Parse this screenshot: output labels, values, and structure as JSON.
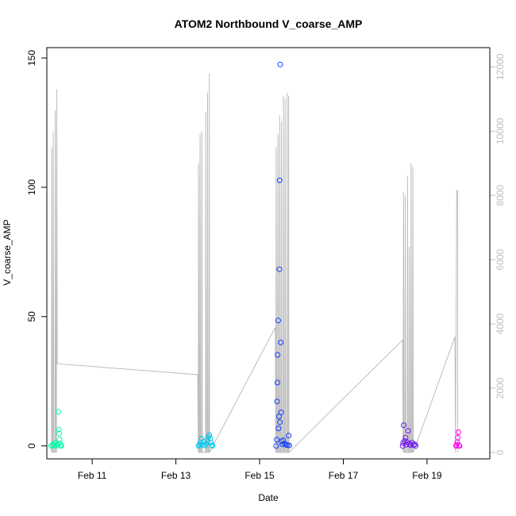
{
  "chart_data": {
    "type": "scatter",
    "title": "ATOM2 Northbound V_coarse_AMP",
    "xlabel": "Date",
    "ylabel": "V_coarse_AMP",
    "x_axis": {
      "min": "2011-02-09T22:00",
      "max": "2011-02-20T12:00",
      "ticks": [
        "Feb 11",
        "Feb 13",
        "Feb 15",
        "Feb 17",
        "Feb 19"
      ]
    },
    "y_left": {
      "min": -5,
      "max": 154,
      "ticks": [
        0,
        50,
        100,
        150
      ]
    },
    "y_right": {
      "min": -200,
      "max": 12600,
      "ticks": [
        0,
        2000,
        4000,
        6000,
        8000,
        10000,
        12000
      ],
      "color": "#bdbdbd"
    },
    "series": [
      {
        "color": "#00ffaa",
        "points": [
          [
            "2011-02-10T00:30",
            0
          ],
          [
            "2011-02-10T01:00",
            0.3
          ],
          [
            "2011-02-10T01:40",
            0.6
          ],
          [
            "2011-02-10T02:10",
            0.2
          ],
          [
            "2011-02-10T02:50",
            1.2
          ],
          [
            "2011-02-10T03:20",
            0.4
          ],
          [
            "2011-02-10T03:50",
            0.1
          ],
          [
            "2011-02-10T04:20",
            0.8
          ],
          [
            "2011-02-10T04:40",
            13.2
          ],
          [
            "2011-02-10T04:55",
            6.3
          ],
          [
            "2011-02-10T05:05",
            4.8
          ],
          [
            "2011-02-10T05:20",
            2.4
          ],
          [
            "2011-02-10T05:40",
            0.9
          ],
          [
            "2011-02-10T06:00",
            0.2
          ],
          [
            "2011-02-10T06:20",
            0
          ]
        ]
      },
      {
        "color": "#00c8ee",
        "points": [
          [
            "2011-02-13T13:00",
            0
          ],
          [
            "2011-02-13T13:30",
            0.4
          ],
          [
            "2011-02-13T14:00",
            1.1
          ],
          [
            "2011-02-13T14:40",
            2.8
          ],
          [
            "2011-02-13T15:20",
            0.5
          ],
          [
            "2011-02-13T16:00",
            1.6
          ],
          [
            "2011-02-13T16:40",
            0.2
          ],
          [
            "2011-02-13T17:20",
            0.9
          ],
          [
            "2011-02-13T18:00",
            2.1
          ],
          [
            "2011-02-13T18:40",
            3.5
          ],
          [
            "2011-02-13T19:10",
            4.2
          ],
          [
            "2011-02-13T19:40",
            2.9
          ],
          [
            "2011-02-13T20:10",
            1.3
          ],
          [
            "2011-02-13T20:40",
            0.3
          ],
          [
            "2011-02-13T21:00",
            0
          ]
        ]
      },
      {
        "color": "#1040ff",
        "points": [
          [
            "2011-02-15T09:30",
            0
          ],
          [
            "2011-02-15T09:50",
            2.4
          ],
          [
            "2011-02-15T10:00",
            17.2
          ],
          [
            "2011-02-15T10:10",
            24.5
          ],
          [
            "2011-02-15T10:20",
            35.2
          ],
          [
            "2011-02-15T10:40",
            48.5
          ],
          [
            "2011-02-15T10:50",
            6.8
          ],
          [
            "2011-02-15T11:10",
            11.4
          ],
          [
            "2011-02-15T11:20",
            68.3
          ],
          [
            "2011-02-15T11:30",
            102.7
          ],
          [
            "2011-02-15T11:40",
            9.2
          ],
          [
            "2011-02-15T11:50",
            147.5
          ],
          [
            "2011-02-15T12:10",
            40.0
          ],
          [
            "2011-02-15T12:20",
            13.0
          ],
          [
            "2011-02-15T12:40",
            1.8
          ],
          [
            "2011-02-15T13:10",
            0.6
          ],
          [
            "2011-02-15T13:40",
            2.2
          ],
          [
            "2011-02-15T14:20",
            0.9
          ],
          [
            "2011-02-15T15:10",
            0.4
          ],
          [
            "2011-02-15T16:00",
            0.3
          ],
          [
            "2011-02-15T16:40",
            4.0
          ],
          [
            "2011-02-15T17:00",
            0.2
          ]
        ]
      },
      {
        "color": "#6a10ee",
        "points": [
          [
            "2011-02-18T10:00",
            0
          ],
          [
            "2011-02-18T10:20",
            1.1
          ],
          [
            "2011-02-18T10:40",
            8.0
          ],
          [
            "2011-02-18T11:10",
            1.9
          ],
          [
            "2011-02-18T11:40",
            3.2
          ],
          [
            "2011-02-18T12:10",
            0.5
          ],
          [
            "2011-02-18T12:40",
            1.4
          ],
          [
            "2011-02-18T13:10",
            5.8
          ],
          [
            "2011-02-18T13:50",
            0.7
          ],
          [
            "2011-02-18T14:40",
            0.3
          ],
          [
            "2011-02-18T15:30",
            1.2
          ],
          [
            "2011-02-18T16:20",
            0.4
          ],
          [
            "2011-02-18T17:00",
            0.6
          ],
          [
            "2011-02-18T17:30",
            0
          ]
        ]
      },
      {
        "color": "#ff00ee",
        "points": [
          [
            "2011-02-19T16:40",
            0
          ],
          [
            "2011-02-19T17:00",
            0.4
          ],
          [
            "2011-02-19T17:20",
            1.4
          ],
          [
            "2011-02-19T17:40",
            3.2
          ],
          [
            "2011-02-19T18:00",
            5.3
          ],
          [
            "2011-02-19T18:20",
            0.2
          ],
          [
            "2011-02-19T18:40",
            0
          ]
        ]
      }
    ],
    "line_series": {
      "color": "#bdbdbd",
      "axis": "right",
      "points": [
        [
          "2011-02-10T00:40",
          0
        ],
        [
          "2011-02-10T00:50",
          9500
        ],
        [
          "2011-02-10T01:10",
          0
        ],
        [
          "2011-02-10T01:30",
          0
        ],
        [
          "2011-02-10T01:40",
          10000
        ],
        [
          "2011-02-10T02:00",
          0
        ],
        [
          "2011-02-10T02:40",
          0
        ],
        [
          "2011-02-10T02:50",
          10650
        ],
        [
          "2011-02-10T03:10",
          0
        ],
        [
          "2011-02-10T03:30",
          0
        ],
        [
          "2011-02-10T03:40",
          11300
        ],
        [
          "2011-02-10T04:00",
          2760
        ],
        [
          "2011-02-13T12:30",
          2420
        ],
        [
          "2011-02-13T12:50",
          0
        ],
        [
          "2011-02-13T13:00",
          9000
        ],
        [
          "2011-02-13T13:20",
          0
        ],
        [
          "2011-02-13T13:40",
          0
        ],
        [
          "2011-02-13T13:50",
          9900
        ],
        [
          "2011-02-13T14:10",
          0
        ],
        [
          "2011-02-13T14:40",
          0
        ],
        [
          "2011-02-13T14:50",
          10000
        ],
        [
          "2011-02-13T15:10",
          0
        ],
        [
          "2011-02-13T17:00",
          0
        ],
        [
          "2011-02-13T17:10",
          10600
        ],
        [
          "2011-02-13T17:30",
          0
        ],
        [
          "2011-02-13T18:00",
          0
        ],
        [
          "2011-02-13T18:10",
          11200
        ],
        [
          "2011-02-13T18:30",
          0
        ],
        [
          "2011-02-13T19:00",
          0
        ],
        [
          "2011-02-13T19:10",
          11800
        ],
        [
          "2011-02-13T19:20",
          0
        ],
        [
          "2011-02-15T09:00",
          3900
        ],
        [
          "2011-02-15T09:20",
          0
        ],
        [
          "2011-02-15T09:30",
          9500
        ],
        [
          "2011-02-15T09:50",
          0
        ],
        [
          "2011-02-15T10:20",
          0
        ],
        [
          "2011-02-15T10:30",
          9900
        ],
        [
          "2011-02-15T10:50",
          0
        ],
        [
          "2011-02-15T11:20",
          0
        ],
        [
          "2011-02-15T11:30",
          10500
        ],
        [
          "2011-02-15T11:50",
          0
        ],
        [
          "2011-02-15T12:20",
          0
        ],
        [
          "2011-02-15T12:30",
          10300
        ],
        [
          "2011-02-15T12:50",
          0
        ],
        [
          "2011-02-15T13:30",
          0
        ],
        [
          "2011-02-15T13:40",
          11100
        ],
        [
          "2011-02-15T14:00",
          0
        ],
        [
          "2011-02-15T14:30",
          0
        ],
        [
          "2011-02-15T14:40",
          11000
        ],
        [
          "2011-02-15T15:00",
          0
        ],
        [
          "2011-02-15T15:40",
          0
        ],
        [
          "2011-02-15T15:50",
          11200
        ],
        [
          "2011-02-15T16:00",
          0
        ],
        [
          "2011-02-15T16:30",
          0
        ],
        [
          "2011-02-15T16:40",
          11100
        ],
        [
          "2011-02-15T16:50",
          0
        ],
        [
          "2011-02-18T10:00",
          3500
        ],
        [
          "2011-02-18T10:20",
          0
        ],
        [
          "2011-02-18T10:30",
          8100
        ],
        [
          "2011-02-18T10:50",
          0
        ],
        [
          "2011-02-18T11:20",
          0
        ],
        [
          "2011-02-18T11:30",
          8000
        ],
        [
          "2011-02-18T11:50",
          0
        ],
        [
          "2011-02-18T12:40",
          0
        ],
        [
          "2011-02-18T12:50",
          8600
        ],
        [
          "2011-02-18T13:10",
          0
        ],
        [
          "2011-02-18T13:40",
          0
        ],
        [
          "2011-02-18T13:50",
          6400
        ],
        [
          "2011-02-18T14:10",
          0
        ],
        [
          "2011-02-18T14:40",
          0
        ],
        [
          "2011-02-18T14:50",
          9000
        ],
        [
          "2011-02-18T15:10",
          0
        ],
        [
          "2011-02-18T15:40",
          0
        ],
        [
          "2011-02-18T15:50",
          8900
        ],
        [
          "2011-02-18T16:10",
          0
        ],
        [
          "2011-02-19T16:00",
          3600
        ],
        [
          "2011-02-19T16:20",
          0
        ],
        [
          "2011-02-19T17:00",
          8150
        ],
        [
          "2011-02-19T17:30",
          8150
        ],
        [
          "2011-02-19T17:40",
          0
        ]
      ]
    }
  }
}
